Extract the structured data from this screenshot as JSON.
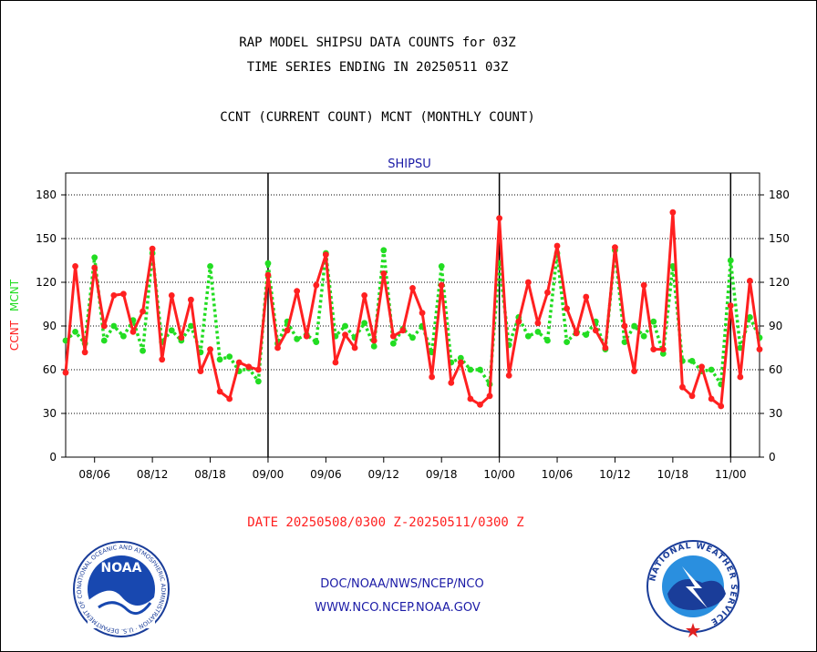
{
  "header": {
    "title_line1": "RAP MODEL SHIPSU DATA COUNTS for 03Z",
    "title_line2": "TIME SERIES ENDING IN 20250511 03Z",
    "subtitle": "CCNT (CURRENT COUNT) MCNT (MONTHLY COUNT)"
  },
  "footer": {
    "date_range": "DATE 20250508/0300 Z-20250511/0300 Z",
    "org_line": "DOC/NOAA/NWS/NCEP/NCO",
    "url_line": "WWW.NCO.NCEP.NOAA.GOV",
    "noaa_logo_text": "NOAA",
    "noaa_ring_text": "NATIONAL OCEANIC AND ATMOSPHERIC ADMINISTRATION · U.S. DEPARTMENT OF COMMERCE",
    "nws_ring_text": "NATIONAL WEATHER SERVICE"
  },
  "colors": {
    "ccnt": "#ff2020",
    "mcnt": "#22dd22",
    "text_blue": "#1a1aa6"
  },
  "chart_data": {
    "type": "line",
    "title": "SHIPSU",
    "ylabel_ccnt": "CCNT",
    "ylabel_mcnt": "MCNT",
    "ylim": [
      0,
      195
    ],
    "yticks": [
      0,
      30,
      60,
      90,
      120,
      150,
      180
    ],
    "xtick_labels": [
      "08/06",
      "08/12",
      "08/18",
      "09/00",
      "09/06",
      "09/12",
      "09/18",
      "10/00",
      "10/06",
      "10/12",
      "10/18",
      "11/00"
    ],
    "grid": "horizontal dotted",
    "series": [
      {
        "name": "CCNT",
        "values": [
          58,
          131,
          72,
          130,
          90,
          111,
          112,
          86,
          100,
          143,
          67,
          111,
          82,
          108,
          59,
          74,
          45,
          40,
          65,
          62,
          60,
          125,
          75,
          87,
          114,
          83,
          118,
          139,
          65,
          84,
          75,
          111,
          80,
          126,
          83,
          87,
          116,
          99,
          55,
          118,
          51,
          65,
          40,
          36,
          42,
          164,
          56,
          93,
          120,
          92,
          113,
          145,
          102,
          85,
          110,
          87,
          75,
          144,
          90,
          59,
          118,
          74,
          74,
          168,
          48,
          42,
          62,
          40,
          35,
          104,
          55,
          121,
          74
        ]
      },
      {
        "name": "MCNT",
        "values": [
          80,
          86,
          78,
          137,
          80,
          90,
          83,
          94,
          73,
          140,
          79,
          87,
          80,
          90,
          72,
          131,
          67,
          69,
          59,
          61,
          52,
          133,
          78,
          93,
          81,
          84,
          79,
          140,
          83,
          90,
          82,
          92,
          76,
          142,
          78,
          88,
          82,
          90,
          72,
          131,
          65,
          68,
          60,
          60,
          50,
          133,
          77,
          96,
          83,
          86,
          80,
          140,
          79,
          86,
          84,
          93,
          74,
          142,
          79,
          90,
          83,
          93,
          71,
          131,
          66,
          66,
          59,
          60,
          50,
          135,
          75,
          96,
          82
        ]
      }
    ]
  }
}
